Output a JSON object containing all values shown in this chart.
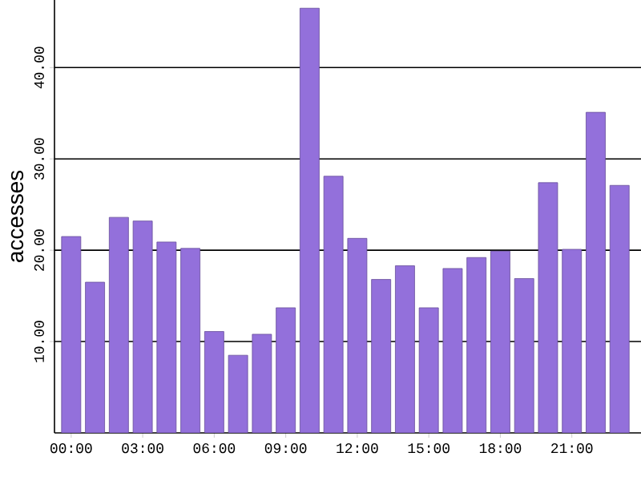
{
  "chart_data": {
    "type": "bar",
    "ylabel": "accesses",
    "categories": [
      "00:00",
      null,
      null,
      "03:00",
      null,
      null,
      "06:00",
      null,
      null,
      "09:00",
      null,
      null,
      "12:00",
      null,
      null,
      "15:00",
      null,
      null,
      "18:00",
      null,
      null,
      "21:00",
      null,
      null
    ],
    "values": [
      21.5,
      16.5,
      23.6,
      23.2,
      20.9,
      20.2,
      11.1,
      8.5,
      10.8,
      13.7,
      46.5,
      28.1,
      21.3,
      16.8,
      18.3,
      13.7,
      18.0,
      19.2,
      19.9,
      16.9,
      27.4,
      20.1,
      35.1,
      27.1
    ],
    "color": "#9370db",
    "ylim": [
      0,
      47.4
    ],
    "yticks": [
      {
        "value": 10,
        "label": "10.00"
      },
      {
        "value": 20,
        "label": "20.00"
      },
      {
        "value": 30,
        "label": "30.00"
      },
      {
        "value": 40,
        "label": "40.00"
      }
    ],
    "grid": "y"
  }
}
